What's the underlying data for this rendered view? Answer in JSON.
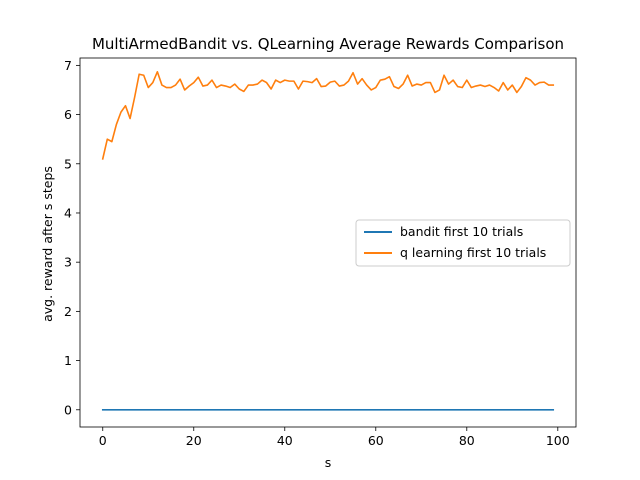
{
  "chart_data": {
    "type": "line",
    "title": "MultiArmedBandit vs. QLearning Average Rewards Comparison",
    "xlabel": "s",
    "ylabel": "avg. reward after s steps",
    "xlim": [
      -5,
      104
    ],
    "ylim": [
      -0.35,
      7.15
    ],
    "xticks": [
      0,
      20,
      40,
      60,
      80,
      100
    ],
    "yticks": [
      0,
      1,
      2,
      3,
      4,
      5,
      6,
      7
    ],
    "grid": false,
    "legend": {
      "placement": "center-right"
    },
    "x": [
      0,
      1,
      2,
      3,
      4,
      5,
      6,
      7,
      8,
      9,
      10,
      11,
      12,
      13,
      14,
      15,
      16,
      17,
      18,
      19,
      20,
      21,
      22,
      23,
      24,
      25,
      26,
      27,
      28,
      29,
      30,
      31,
      32,
      33,
      34,
      35,
      36,
      37,
      38,
      39,
      40,
      41,
      42,
      43,
      44,
      45,
      46,
      47,
      48,
      49,
      50,
      51,
      52,
      53,
      54,
      55,
      56,
      57,
      58,
      59,
      60,
      61,
      62,
      63,
      64,
      65,
      66,
      67,
      68,
      69,
      70,
      71,
      72,
      73,
      74,
      75,
      76,
      77,
      78,
      79,
      80,
      81,
      82,
      83,
      84,
      85,
      86,
      87,
      88,
      89,
      90,
      91,
      92,
      93,
      94,
      95,
      96,
      97,
      98,
      99
    ],
    "series": [
      {
        "name": "bandit first 10 trials",
        "color": "#1f77b4",
        "values": [
          0,
          0,
          0,
          0,
          0,
          0,
          0,
          0,
          0,
          0,
          0,
          0,
          0,
          0,
          0,
          0,
          0,
          0,
          0,
          0,
          0,
          0,
          0,
          0,
          0,
          0,
          0,
          0,
          0,
          0,
          0,
          0,
          0,
          0,
          0,
          0,
          0,
          0,
          0,
          0,
          0,
          0,
          0,
          0,
          0,
          0,
          0,
          0,
          0,
          0,
          0,
          0,
          0,
          0,
          0,
          0,
          0,
          0,
          0,
          0,
          0,
          0,
          0,
          0,
          0,
          0,
          0,
          0,
          0,
          0,
          0,
          0,
          0,
          0,
          0,
          0,
          0,
          0,
          0,
          0,
          0,
          0,
          0,
          0,
          0,
          0,
          0,
          0,
          0,
          0,
          0,
          0,
          0,
          0,
          0,
          0,
          0,
          0,
          0,
          0
        ]
      },
      {
        "name": "q learning first 10 trials",
        "color": "#ff7f0e",
        "values": [
          5.1,
          5.5,
          5.45,
          5.8,
          6.05,
          6.18,
          5.92,
          6.35,
          6.82,
          6.8,
          6.55,
          6.65,
          6.87,
          6.6,
          6.55,
          6.55,
          6.6,
          6.72,
          6.5,
          6.58,
          6.65,
          6.76,
          6.58,
          6.6,
          6.7,
          6.55,
          6.6,
          6.58,
          6.55,
          6.62,
          6.52,
          6.47,
          6.6,
          6.6,
          6.62,
          6.7,
          6.65,
          6.52,
          6.7,
          6.65,
          6.7,
          6.68,
          6.68,
          6.52,
          6.68,
          6.67,
          6.65,
          6.73,
          6.57,
          6.58,
          6.66,
          6.68,
          6.58,
          6.6,
          6.68,
          6.85,
          6.62,
          6.73,
          6.6,
          6.5,
          6.55,
          6.7,
          6.72,
          6.77,
          6.57,
          6.53,
          6.62,
          6.8,
          6.58,
          6.62,
          6.6,
          6.65,
          6.65,
          6.45,
          6.5,
          6.8,
          6.62,
          6.7,
          6.57,
          6.55,
          6.7,
          6.55,
          6.58,
          6.6,
          6.57,
          6.6,
          6.55,
          6.48,
          6.65,
          6.5,
          6.6,
          6.45,
          6.57,
          6.75,
          6.7,
          6.6,
          6.65,
          6.66,
          6.6,
          6.6
        ]
      }
    ]
  }
}
